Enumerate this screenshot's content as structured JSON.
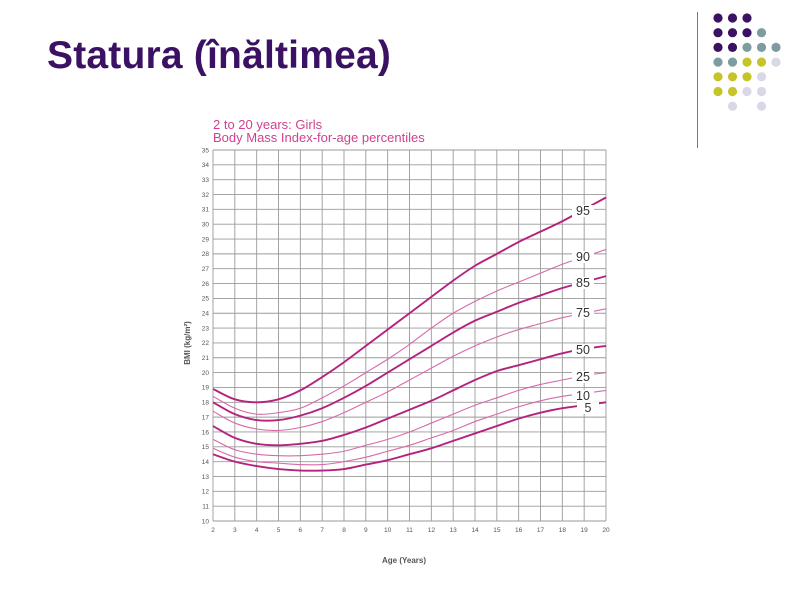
{
  "slide": {
    "title": "Statura (înăltimea)",
    "accent_colors": [
      "#3b1163",
      "#7b9da0",
      "#c5c52b",
      "#d8d8e6"
    ]
  },
  "chart_data": {
    "type": "line",
    "title": "2 to 20 years: Girls",
    "subtitle": "Body Mass Index-for-age percentiles",
    "xlabel": "Age (Years)",
    "ylabel": "BMI (kg/m²)",
    "xlim": [
      2,
      20
    ],
    "ylim": [
      10,
      35
    ],
    "x_ticks": [
      "2",
      "3",
      "4",
      "5",
      "6",
      "7",
      "8",
      "9",
      "10",
      "11",
      "12",
      "13",
      "14",
      "15",
      "16",
      "17",
      "18",
      "19",
      "20"
    ],
    "y_ticks": [
      "10",
      "11",
      "12",
      "13",
      "14",
      "15",
      "16",
      "17",
      "18",
      "19",
      "20",
      "21",
      "22",
      "23",
      "24",
      "25",
      "26",
      "27",
      "28",
      "29",
      "30",
      "31",
      "32",
      "33",
      "34",
      "35"
    ],
    "grid": true,
    "x": [
      2,
      3,
      4,
      5,
      6,
      7,
      8,
      9,
      10,
      11,
      12,
      13,
      14,
      15,
      16,
      17,
      18,
      19,
      20
    ],
    "series": [
      {
        "name": "95",
        "values": [
          18.9,
          18.2,
          18.0,
          18.2,
          18.8,
          19.7,
          20.7,
          21.8,
          22.9,
          24.0,
          25.1,
          26.2,
          27.2,
          28.0,
          28.8,
          29.5,
          30.2,
          31.0,
          31.8
        ]
      },
      {
        "name": "90",
        "values": [
          18.4,
          17.6,
          17.2,
          17.3,
          17.6,
          18.3,
          19.1,
          20.0,
          20.9,
          21.9,
          23.0,
          24.0,
          24.8,
          25.5,
          26.1,
          26.7,
          27.3,
          27.8,
          28.3
        ]
      },
      {
        "name": "85",
        "values": [
          18.0,
          17.2,
          16.8,
          16.8,
          17.1,
          17.6,
          18.3,
          19.1,
          20.0,
          20.9,
          21.8,
          22.7,
          23.5,
          24.1,
          24.7,
          25.2,
          25.7,
          26.1,
          26.5
        ]
      },
      {
        "name": "75",
        "values": [
          17.4,
          16.6,
          16.2,
          16.1,
          16.3,
          16.7,
          17.3,
          18.0,
          18.7,
          19.5,
          20.3,
          21.1,
          21.8,
          22.4,
          22.9,
          23.3,
          23.7,
          24.0,
          24.3
        ]
      },
      {
        "name": "50",
        "values": [
          16.4,
          15.6,
          15.2,
          15.1,
          15.2,
          15.4,
          15.8,
          16.3,
          16.9,
          17.5,
          18.1,
          18.8,
          19.5,
          20.1,
          20.5,
          20.9,
          21.3,
          21.6,
          21.8
        ]
      },
      {
        "name": "25",
        "values": [
          15.5,
          14.8,
          14.5,
          14.4,
          14.4,
          14.5,
          14.7,
          15.1,
          15.5,
          16.0,
          16.6,
          17.2,
          17.8,
          18.3,
          18.8,
          19.2,
          19.5,
          19.8,
          20.0
        ]
      },
      {
        "name": "10",
        "values": [
          14.9,
          14.3,
          14.0,
          13.9,
          13.8,
          13.8,
          14.0,
          14.3,
          14.7,
          15.1,
          15.6,
          16.1,
          16.7,
          17.2,
          17.7,
          18.1,
          18.4,
          18.6,
          18.8
        ]
      },
      {
        "name": "5",
        "values": [
          14.5,
          14.0,
          13.7,
          13.5,
          13.4,
          13.4,
          13.5,
          13.8,
          14.1,
          14.5,
          14.9,
          15.4,
          15.9,
          16.4,
          16.9,
          17.3,
          17.6,
          17.8,
          18.0
        ]
      }
    ],
    "line_colors": {
      "major": "#b3237e",
      "minor": "#d86aa8"
    },
    "major_series": [
      "95",
      "85",
      "50",
      "5"
    ]
  }
}
